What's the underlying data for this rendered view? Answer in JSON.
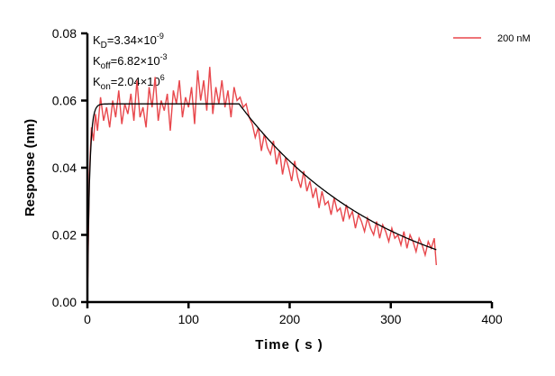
{
  "chart_data": {
    "type": "line",
    "xlabel": "Time ( s )",
    "ylabel": "Response (nm)",
    "xlim": [
      0,
      400
    ],
    "ylim": [
      0,
      0.08
    ],
    "xticks": [
      "0",
      "100",
      "200",
      "300",
      "400"
    ],
    "yticks": [
      "0.00",
      "0.02",
      "0.04",
      "0.06",
      "0.08"
    ],
    "grid": false,
    "legend_position": "top-right",
    "annotations": [
      {
        "base": "K",
        "sub": "D",
        "text": "=3.34×10",
        "sup": "-9"
      },
      {
        "base": "K",
        "sub": "off",
        "text": "=6.82×10",
        "sup": "-3"
      },
      {
        "base": "K",
        "sub": "on",
        "text": "=2.04×10",
        "sup": "6"
      }
    ],
    "series": [
      {
        "name": "200 nM",
        "color": "#e8474c",
        "x": [
          0,
          2,
          4,
          6,
          8,
          10,
          13,
          16,
          19,
          22,
          25,
          28,
          31,
          34,
          37,
          40,
          43,
          46,
          49,
          52,
          55,
          58,
          61,
          64,
          67,
          70,
          73,
          76,
          79,
          82,
          85,
          88,
          91,
          94,
          97,
          100,
          103,
          106,
          109,
          112,
          115,
          118,
          121,
          124,
          127,
          130,
          133,
          136,
          139,
          142,
          145,
          148,
          151,
          154,
          157,
          160,
          163,
          166,
          169,
          172,
          175,
          178,
          181,
          184,
          187,
          190,
          193,
          196,
          199,
          202,
          205,
          208,
          211,
          214,
          217,
          220,
          223,
          226,
          229,
          232,
          235,
          238,
          241,
          244,
          247,
          250,
          253,
          256,
          259,
          262,
          265,
          268,
          271,
          274,
          277,
          280,
          283,
          286,
          289,
          292,
          295,
          298,
          301,
          304,
          307,
          310,
          313,
          316,
          319,
          322,
          325,
          328,
          331,
          334,
          337,
          340,
          343,
          345
        ],
        "y": [
          0.0,
          0.038,
          0.052,
          0.048,
          0.056,
          0.051,
          0.061,
          0.054,
          0.058,
          0.052,
          0.06,
          0.055,
          0.063,
          0.053,
          0.059,
          0.056,
          0.062,
          0.054,
          0.066,
          0.055,
          0.058,
          0.052,
          0.064,
          0.058,
          0.067,
          0.054,
          0.06,
          0.057,
          0.062,
          0.051,
          0.063,
          0.059,
          0.066,
          0.055,
          0.061,
          0.058,
          0.064,
          0.053,
          0.069,
          0.06,
          0.066,
          0.057,
          0.07,
          0.056,
          0.064,
          0.059,
          0.066,
          0.058,
          0.063,
          0.055,
          0.064,
          0.06,
          0.061,
          0.058,
          0.059,
          0.055,
          0.053,
          0.049,
          0.052,
          0.045,
          0.05,
          0.046,
          0.044,
          0.048,
          0.041,
          0.045,
          0.038,
          0.043,
          0.04,
          0.036,
          0.042,
          0.037,
          0.034,
          0.039,
          0.033,
          0.036,
          0.031,
          0.034,
          0.028,
          0.033,
          0.029,
          0.03,
          0.026,
          0.031,
          0.027,
          0.028,
          0.024,
          0.029,
          0.025,
          0.027,
          0.022,
          0.026,
          0.024,
          0.021,
          0.025,
          0.022,
          0.02,
          0.024,
          0.019,
          0.023,
          0.021,
          0.018,
          0.022,
          0.019,
          0.02,
          0.017,
          0.021,
          0.016,
          0.02,
          0.018,
          0.015,
          0.019,
          0.017,
          0.014,
          0.018,
          0.016,
          0.019,
          0.011
        ]
      }
    ],
    "fit": {
      "color": "#000000",
      "plateau": 0.059,
      "association_end": 150,
      "koff": 0.00682,
      "x_end": 345
    }
  }
}
